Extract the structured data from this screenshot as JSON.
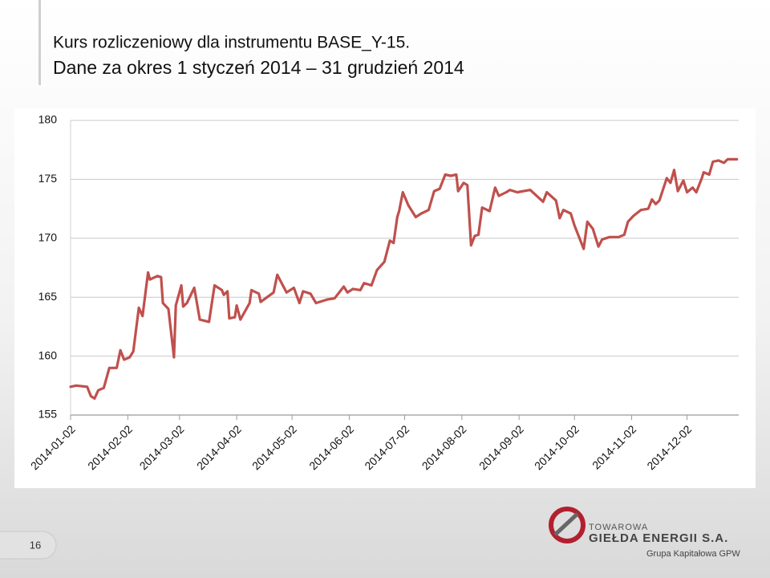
{
  "chart_data": {
    "type": "line",
    "title": "Kurs rozliczeniowy dla instrumentu BASE_Y-15.",
    "subtitle": "Dane za okres 1 styczeń 2014 – 31 grudzień 2014",
    "x": [
      "2014-01-02",
      "2014-01-05",
      "2014-01-11",
      "2014-01-13",
      "2014-01-15",
      "2014-01-17",
      "2014-01-20",
      "2014-01-23",
      "2014-01-27",
      "2014-01-29",
      "2014-01-31",
      "2014-02-03",
      "2014-02-05",
      "2014-02-08",
      "2014-02-10",
      "2014-02-13",
      "2014-02-14",
      "2014-02-18",
      "2014-02-20",
      "2014-02-21",
      "2014-02-24",
      "2014-02-27",
      "2014-02-28",
      "2014-03-03",
      "2014-03-04",
      "2014-03-06",
      "2014-03-10",
      "2014-03-13",
      "2014-03-18",
      "2014-03-21",
      "2014-03-25",
      "2014-03-26",
      "2014-03-28",
      "2014-03-29",
      "2014-04-01",
      "2014-04-02",
      "2014-04-04",
      "2014-04-09",
      "2014-04-10",
      "2014-04-14",
      "2014-04-15",
      "2014-04-22",
      "2014-04-24",
      "2014-04-29",
      "2014-05-03",
      "2014-05-06",
      "2014-05-08",
      "2014-05-12",
      "2014-05-15",
      "2014-05-21",
      "2014-05-25",
      "2014-05-30",
      "2014-06-01",
      "2014-06-04",
      "2014-06-08",
      "2014-06-10",
      "2014-06-14",
      "2014-06-17",
      "2014-06-21",
      "2014-06-24",
      "2014-06-26",
      "2014-06-28",
      "2014-06-29",
      "2014-07-01",
      "2014-07-04",
      "2014-07-08",
      "2014-07-11",
      "2014-07-15",
      "2014-07-18",
      "2014-07-21",
      "2014-07-24",
      "2014-07-27",
      "2014-07-30",
      "2014-07-31",
      "2014-08-03",
      "2014-08-05",
      "2014-08-07",
      "2014-08-09",
      "2014-08-11",
      "2014-08-13",
      "2014-08-17",
      "2014-08-20",
      "2014-08-22",
      "2014-08-26",
      "2014-08-28",
      "2014-09-01",
      "2014-09-08",
      "2014-09-15",
      "2014-09-17",
      "2014-09-22",
      "2014-09-24",
      "2014-09-26",
      "2014-09-30",
      "2014-10-02",
      "2014-10-07",
      "2014-10-09",
      "2014-10-12",
      "2014-10-15",
      "2014-10-17",
      "2014-10-21",
      "2014-10-26",
      "2014-10-29",
      "2014-10-31",
      "2014-11-03",
      "2014-11-07",
      "2014-11-11",
      "2014-11-13",
      "2014-11-15",
      "2014-11-17",
      "2014-11-21",
      "2014-11-23",
      "2014-11-25",
      "2014-11-27",
      "2014-11-30",
      "2014-12-02",
      "2014-12-05",
      "2014-12-07",
      "2014-12-10",
      "2014-12-11",
      "2014-12-14",
      "2014-12-16",
      "2014-12-19",
      "2014-12-22",
      "2014-12-24",
      "2014-12-29"
    ],
    "series": [
      {
        "name": "BASE_Y-15",
        "color": "#c0504d",
        "values": [
          157.4,
          157.5,
          157.4,
          156.6,
          156.4,
          157.1,
          157.3,
          159.0,
          159.0,
          160.5,
          159.7,
          159.9,
          160.4,
          164.1,
          163.4,
          167.1,
          166.5,
          166.8,
          166.7,
          164.5,
          164.0,
          159.9,
          164.3,
          166.0,
          164.2,
          164.5,
          165.8,
          163.1,
          162.9,
          166.0,
          165.6,
          165.2,
          165.5,
          163.2,
          163.3,
          164.3,
          163.1,
          164.5,
          165.6,
          165.3,
          164.6,
          165.4,
          166.9,
          165.4,
          165.8,
          164.5,
          165.5,
          165.3,
          164.5,
          164.8,
          164.9,
          165.9,
          165.4,
          165.7,
          165.6,
          166.2,
          166.0,
          167.3,
          168.0,
          169.8,
          169.6,
          171.8,
          172.3,
          173.9,
          172.8,
          171.8,
          172.1,
          172.4,
          174.0,
          174.2,
          175.4,
          175.3,
          175.4,
          174.0,
          174.7,
          174.5,
          169.4,
          170.2,
          170.3,
          172.6,
          172.3,
          174.3,
          173.6,
          173.9,
          174.1,
          173.9,
          174.1,
          173.1,
          173.9,
          173.2,
          171.7,
          172.4,
          172.1,
          171.1,
          169.1,
          171.4,
          170.8,
          169.3,
          169.9,
          170.1,
          170.1,
          170.3,
          171.4,
          171.9,
          172.4,
          172.5,
          173.3,
          172.9,
          173.2,
          175.1,
          174.7,
          175.8,
          174.0,
          174.9,
          173.9,
          174.3,
          173.9,
          175.1,
          175.6,
          175.4,
          176.5,
          176.6,
          176.4,
          176.7,
          176.7
        ]
      }
    ],
    "xlim": [
      "2014-01-02",
      "2014-12-30"
    ],
    "xticks": [
      "2014-01-02",
      "2014-02-02",
      "2014-03-02",
      "2014-04-02",
      "2014-05-02",
      "2014-06-02",
      "2014-07-02",
      "2014-08-02",
      "2014-09-02",
      "2014-10-02",
      "2014-11-02",
      "2014-12-02"
    ],
    "ylim": [
      155,
      180
    ],
    "yticks": [
      155,
      160,
      165,
      170,
      175,
      180
    ],
    "grid": true
  },
  "slide": {
    "page_number": "16",
    "logo": {
      "line1": "TOWAROWA",
      "line2": "GIEŁDA ENERGII S.A.",
      "line3": "Grupa Kapitałowa GPW"
    }
  }
}
